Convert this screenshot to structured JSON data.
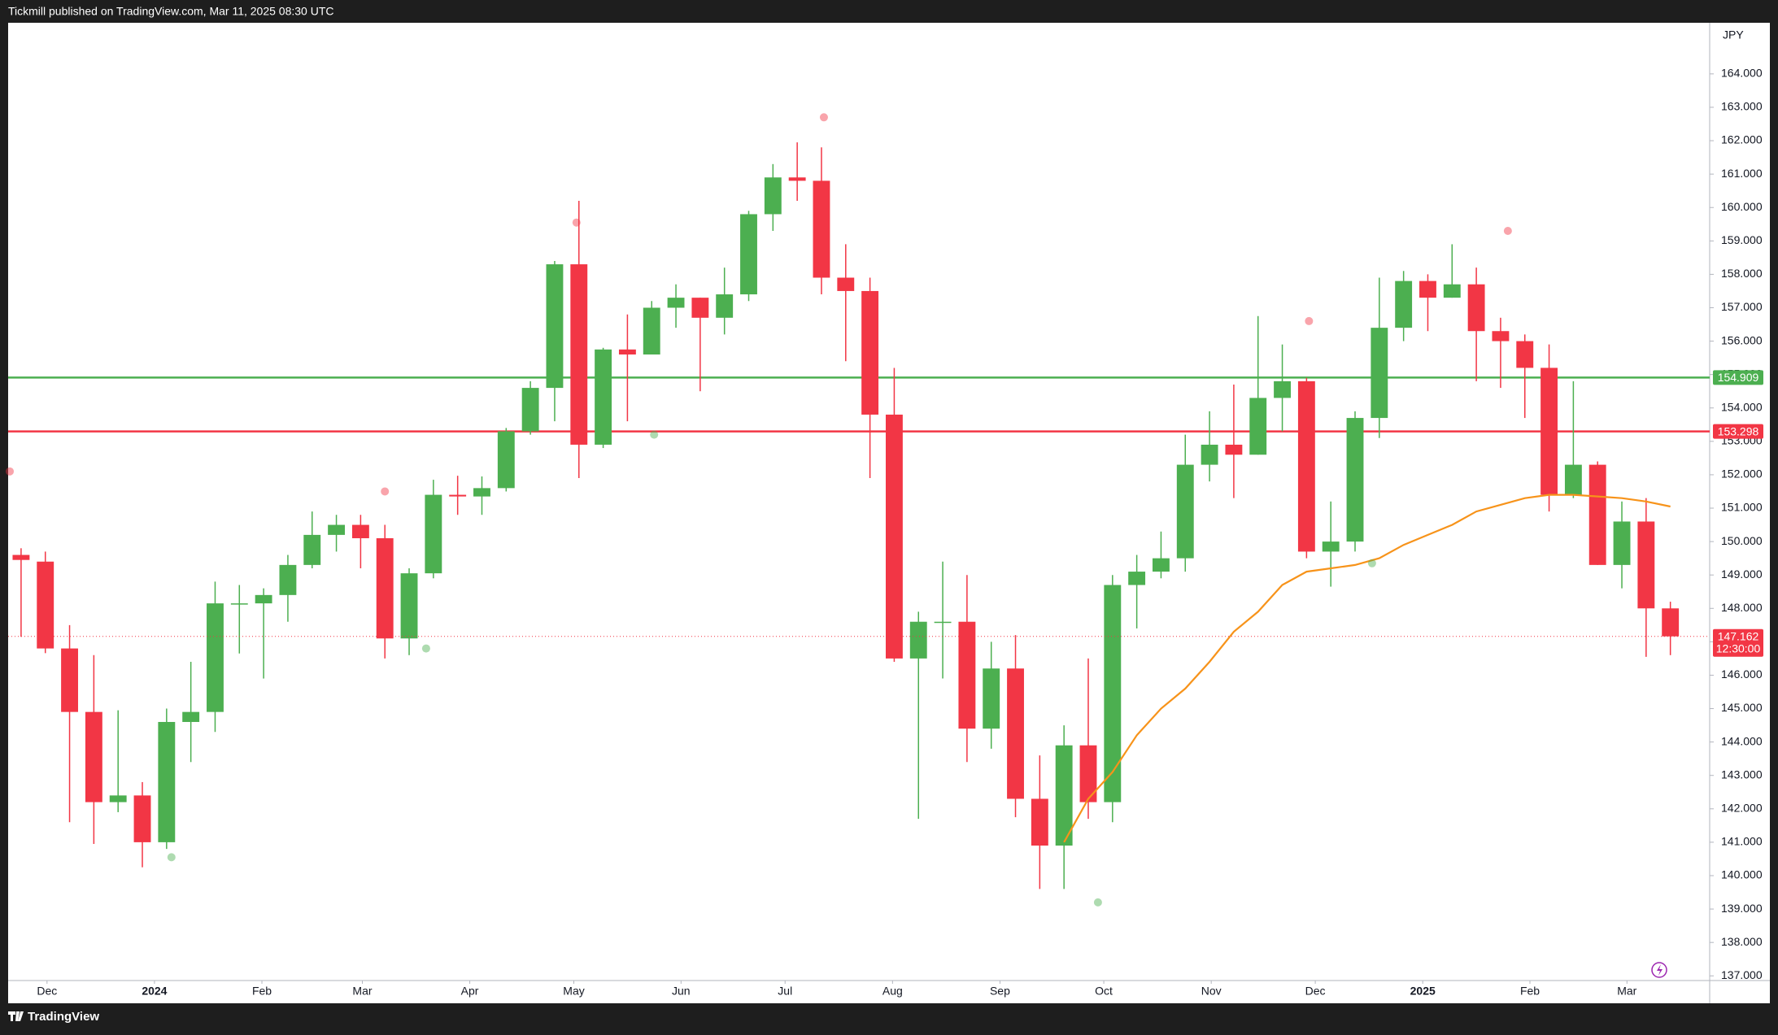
{
  "chart_data": {
    "type": "candlestick",
    "header": "Tickmill published on TradingView.com, Mar 11, 2025 08:30 UTC",
    "footer": "TradingView",
    "currency": "JPY",
    "up_color": "#4caf50",
    "down_color": "#f23645",
    "grid": false,
    "categories": [
      null,
      null,
      null,
      null,
      null,
      null,
      null,
      null,
      null,
      null,
      null,
      null,
      null,
      null,
      null,
      null,
      null,
      null,
      null,
      null,
      null,
      null,
      null,
      null,
      null,
      null,
      null,
      null,
      null,
      null,
      null,
      null,
      null,
      null,
      null,
      null,
      null,
      null,
      null,
      null,
      null,
      null,
      null,
      null,
      null,
      null,
      null,
      null,
      null,
      null,
      null,
      null,
      null,
      null,
      null,
      null,
      null,
      null,
      null,
      null,
      null,
      null,
      null,
      null,
      null,
      null,
      null,
      null,
      null
    ],
    "open": [
      149.6,
      149.4,
      146.8,
      144.9,
      142.2,
      142.4,
      141.0,
      144.6,
      144.9,
      148.15,
      148.15,
      148.4,
      149.3,
      150.2,
      150.5,
      150.1,
      147.1,
      149.05,
      151.4,
      151.35,
      151.6,
      153.3,
      154.6,
      158.3,
      152.9,
      155.75,
      155.6,
      157.0,
      157.3,
      156.7,
      157.4,
      159.8,
      160.9,
      160.8,
      157.9,
      157.5,
      153.8,
      146.5,
      147.6,
      147.6,
      144.4,
      146.2,
      142.3,
      140.9,
      143.9,
      142.2,
      148.7,
      149.1,
      149.5,
      152.3,
      152.9,
      152.6,
      154.3,
      154.8,
      149.7,
      150.0,
      153.7,
      156.4,
      157.8,
      157.3,
      157.7,
      156.3,
      156.0,
      155.2,
      151.4,
      152.3,
      149.3,
      150.6,
      148.0
    ],
    "high": [
      149.8,
      149.7,
      147.5,
      146.6,
      144.95,
      142.8,
      145.0,
      146.4,
      148.8,
      148.7,
      148.6,
      149.6,
      150.9,
      150.8,
      150.8,
      150.5,
      149.2,
      151.85,
      151.97,
      151.95,
      153.4,
      154.8,
      158.4,
      160.2,
      155.8,
      156.8,
      157.2,
      157.7,
      157.3,
      158.2,
      159.9,
      161.3,
      161.95,
      161.8,
      158.9,
      157.9,
      155.2,
      147.9,
      149.4,
      149.0,
      147.0,
      147.2,
      143.6,
      144.5,
      146.5,
      149.0,
      149.6,
      150.3,
      153.2,
      153.9,
      154.7,
      156.75,
      155.9,
      154.9,
      151.2,
      153.9,
      157.9,
      158.1,
      158.0,
      158.9,
      158.2,
      156.7,
      156.2,
      155.9,
      154.8,
      152.4,
      151.2,
      151.3,
      148.2
    ],
    "low": [
      147.15,
      146.66,
      141.6,
      140.95,
      141.9,
      140.25,
      140.8,
      143.4,
      144.3,
      146.65,
      145.9,
      147.6,
      149.2,
      149.7,
      149.2,
      146.5,
      146.6,
      148.9,
      150.8,
      150.8,
      151.5,
      153.2,
      153.6,
      151.9,
      152.8,
      153.6,
      155.6,
      156.4,
      154.5,
      156.2,
      157.2,
      159.3,
      160.2,
      157.4,
      155.4,
      151.9,
      146.4,
      141.7,
      145.9,
      143.4,
      143.8,
      141.75,
      139.6,
      139.6,
      141.7,
      141.6,
      147.4,
      148.9,
      149.1,
      151.8,
      151.3,
      152.6,
      153.3,
      149.5,
      148.65,
      149.7,
      153.1,
      156.0,
      156.3,
      157.3,
      154.8,
      154.6,
      153.7,
      150.9,
      151.3,
      149.3,
      148.6,
      146.55,
      146.6
    ],
    "close": [
      149.45,
      146.8,
      144.9,
      142.2,
      142.4,
      141.0,
      144.6,
      144.9,
      148.15,
      148.15,
      148.4,
      149.3,
      150.2,
      150.5,
      150.1,
      147.1,
      149.05,
      151.4,
      151.35,
      151.6,
      153.3,
      154.6,
      158.3,
      152.9,
      155.75,
      155.6,
      157.0,
      157.3,
      156.7,
      157.4,
      159.8,
      160.9,
      160.8,
      157.9,
      157.5,
      153.8,
      146.5,
      147.6,
      147.6,
      144.4,
      146.2,
      142.3,
      140.9,
      143.9,
      142.2,
      148.7,
      149.1,
      149.5,
      152.3,
      152.9,
      152.6,
      154.3,
      154.8,
      149.7,
      150.0,
      153.7,
      156.4,
      157.8,
      157.3,
      157.7,
      156.3,
      156.0,
      155.2,
      151.4,
      152.3,
      149.3,
      150.6,
      148.0,
      147.162
    ],
    "ma": {
      "color": "#f7931a",
      "values": [
        null,
        null,
        null,
        null,
        null,
        null,
        null,
        null,
        null,
        null,
        null,
        null,
        null,
        null,
        null,
        null,
        null,
        null,
        null,
        null,
        null,
        null,
        null,
        null,
        null,
        null,
        null,
        null,
        null,
        null,
        null,
        null,
        null,
        null,
        null,
        null,
        null,
        null,
        null,
        null,
        null,
        null,
        null,
        141.0,
        142.3,
        143.1,
        144.2,
        145.0,
        145.6,
        146.4,
        147.3,
        147.9,
        148.7,
        149.1,
        149.2,
        149.3,
        149.5,
        149.9,
        150.2,
        150.5,
        150.9,
        151.1,
        151.3,
        151.4,
        151.4,
        151.35,
        151.3,
        151.2,
        151.05
      ]
    },
    "pivots_high": {
      "color": "#f23645",
      "x": [
        -0.5,
        15.0,
        22.9,
        33.1,
        53.1,
        61.3
      ],
      "values": [
        152.1,
        151.5,
        159.55,
        162.7,
        156.6,
        159.3
      ]
    },
    "pivots_low": {
      "color": "#4caf50",
      "x": [
        6.2,
        16.7,
        26.1,
        44.4,
        55.7
      ],
      "values": [
        140.55,
        146.8,
        153.2,
        139.2,
        149.35
      ]
    },
    "hlines": [
      {
        "value": 154.909,
        "color": "#4caf50"
      },
      {
        "value": 153.298,
        "color": "#f23645"
      }
    ],
    "last_price": {
      "value": 147.162,
      "countdown": "12:30:00",
      "color": "#f23645"
    },
    "ylim": [
      136.86,
      165.53
    ],
    "yticks": [
      {
        "value": 137,
        "label": "137.000"
      },
      {
        "value": 138,
        "label": "138.000"
      },
      {
        "value": 139,
        "label": "139.000"
      },
      {
        "value": 140,
        "label": "140.000"
      },
      {
        "value": 141,
        "label": "141.000"
      },
      {
        "value": 142,
        "label": "142.000"
      },
      {
        "value": 143,
        "label": "143.000"
      },
      {
        "value": 144,
        "label": "144.000"
      },
      {
        "value": 145,
        "label": "145.000"
      },
      {
        "value": 146,
        "label": "146.000"
      },
      {
        "value": 147,
        "label": "147.000"
      },
      {
        "value": 148,
        "label": "148.000"
      },
      {
        "value": 149,
        "label": "149.000"
      },
      {
        "value": 150,
        "label": "150.000"
      },
      {
        "value": 151,
        "label": "151.000"
      },
      {
        "value": 152,
        "label": "152.000"
      },
      {
        "value": 153,
        "label": "153.000"
      },
      {
        "value": 154,
        "label": "154.000"
      },
      {
        "value": 155,
        "label": "155.000"
      },
      {
        "value": 156,
        "label": "156.000"
      },
      {
        "value": 157,
        "label": "157.000"
      },
      {
        "value": 158,
        "label": "158.000"
      },
      {
        "value": 159,
        "label": "159.000"
      },
      {
        "value": 160,
        "label": "160.000"
      },
      {
        "value": 161,
        "label": "161.000"
      },
      {
        "value": 162,
        "label": "162.000"
      },
      {
        "value": 163,
        "label": "163.000"
      },
      {
        "value": 164,
        "label": "164.000"
      }
    ],
    "xticks": [
      {
        "value": 1.07,
        "label": "Dec"
      },
      {
        "value": 5.5,
        "label": "2024"
      },
      {
        "value": 9.93,
        "label": "Feb"
      },
      {
        "value": 14.07,
        "label": "Mar"
      },
      {
        "value": 18.5,
        "label": "Apr"
      },
      {
        "value": 22.79,
        "label": "May"
      },
      {
        "value": 27.21,
        "label": "Jun"
      },
      {
        "value": 31.5,
        "label": "Jul"
      },
      {
        "value": 35.93,
        "label": "Aug"
      },
      {
        "value": 40.36,
        "label": "Sep"
      },
      {
        "value": 44.64,
        "label": "Oct"
      },
      {
        "value": 49.07,
        "label": "Nov"
      },
      {
        "value": 53.36,
        "label": "Dec"
      },
      {
        "value": 57.79,
        "label": "2025"
      },
      {
        "value": 62.21,
        "label": "Feb"
      },
      {
        "value": 66.21,
        "label": "Mar"
      }
    ]
  }
}
